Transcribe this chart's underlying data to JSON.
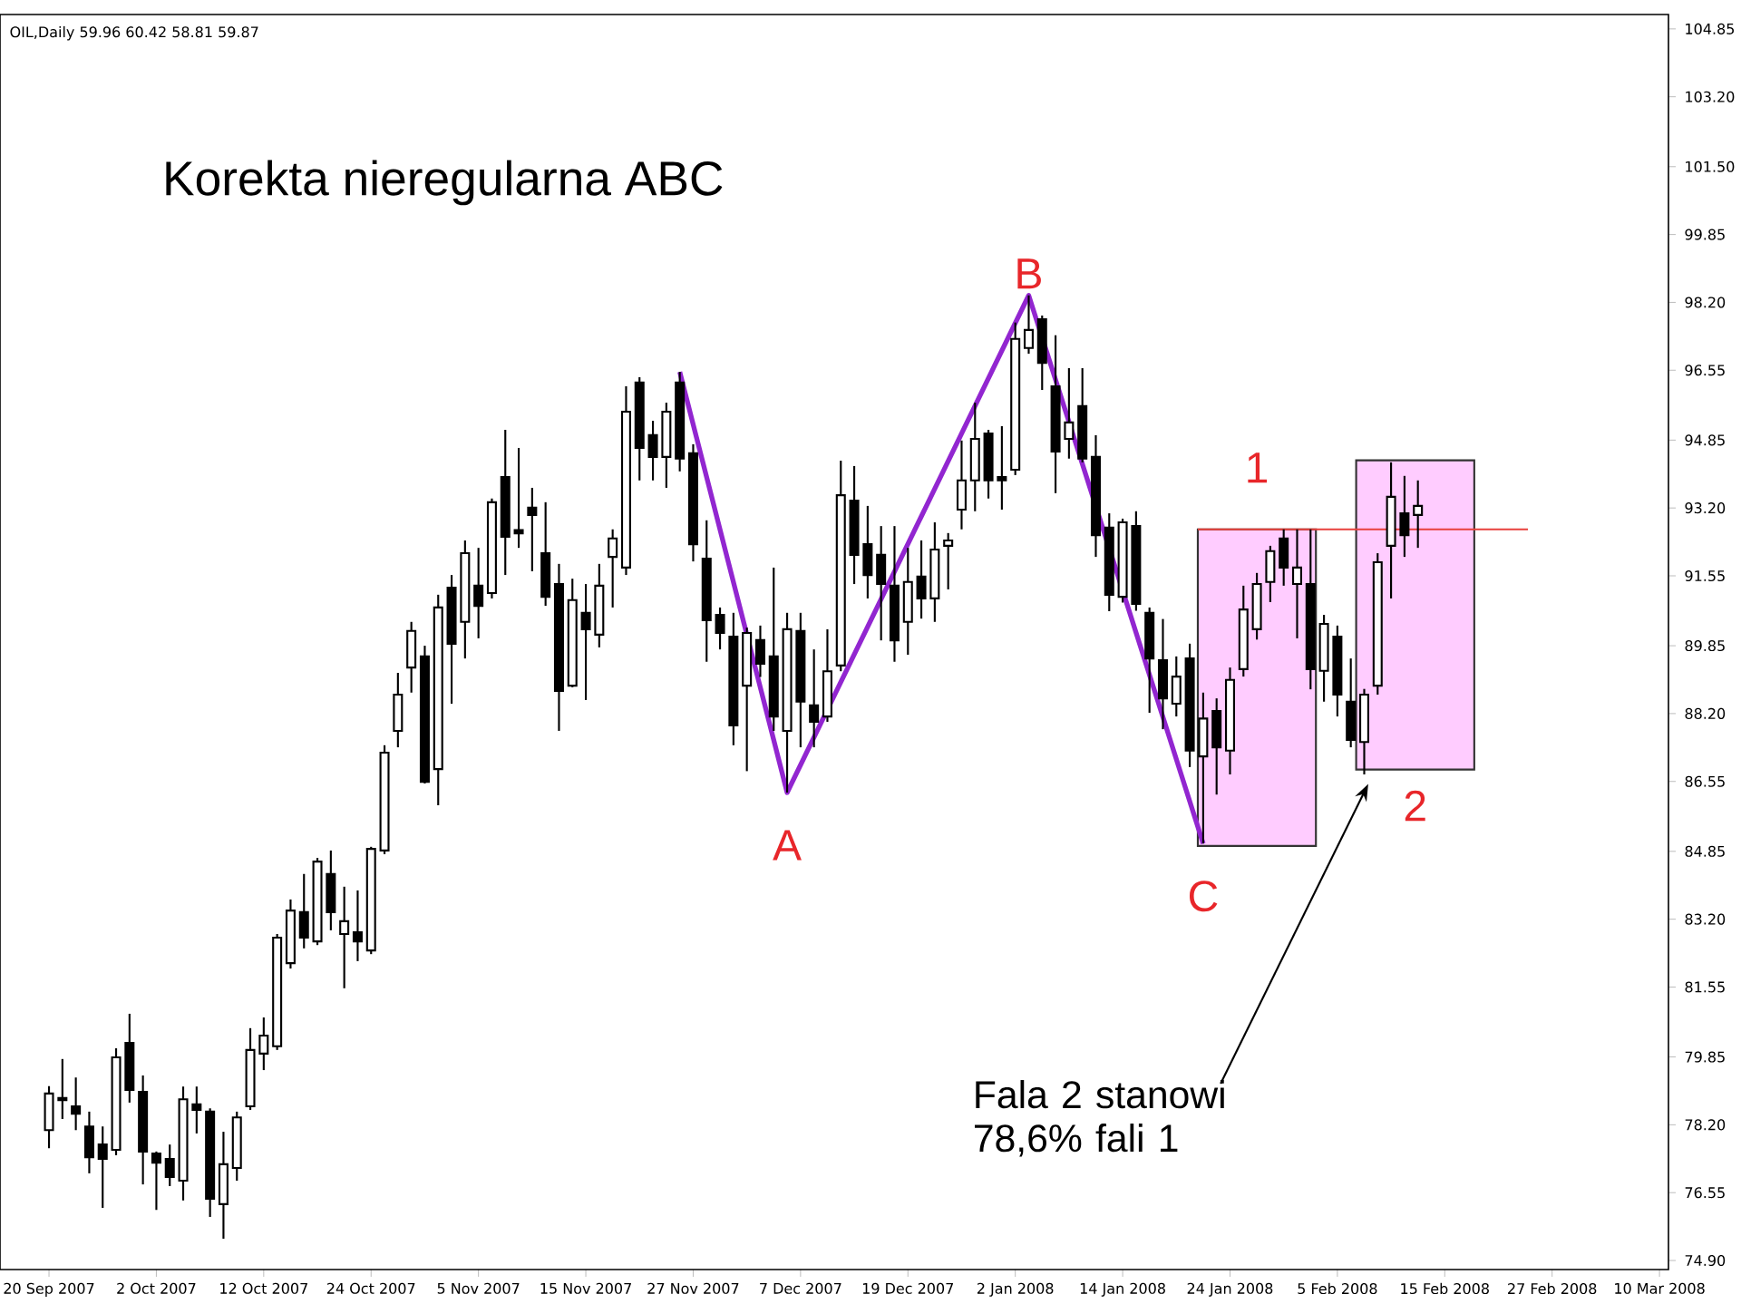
{
  "chart_data": {
    "type": "candlestick",
    "title": "Korekta nieregularna ABC",
    "annotations": [
      "OIL,Daily 59.96 60.42 58.81 59.87",
      {
        "text": "A",
        "y": 86.28
      },
      {
        "text": "B",
        "y": 98.37
      },
      {
        "text": "C",
        "y": 85.04
      },
      {
        "text": "1",
        "y": 92.68
      },
      {
        "text": "2",
        "y": 86.84
      },
      "Fala 2 stanowi 78,6% fali 1"
    ],
    "categories": [
      "20 Sep 2007",
      null,
      null,
      null,
      null,
      null,
      null,
      null,
      "2 Oct 2007",
      null,
      null,
      null,
      null,
      null,
      null,
      null,
      "12 Oct 2007",
      null,
      null,
      null,
      null,
      null,
      null,
      null,
      "24 Oct 2007",
      null,
      null,
      null,
      null,
      null,
      null,
      null,
      "5 Nov 2007",
      null,
      null,
      null,
      null,
      null,
      null,
      null,
      "15 Nov 2007",
      null,
      null,
      null,
      null,
      null,
      null,
      null,
      "27 Nov 2007",
      null,
      null,
      null,
      null,
      null,
      null,
      null,
      "7 Dec 2007",
      null,
      null,
      null,
      null,
      null,
      null,
      null,
      "19 Dec 2007",
      null,
      null,
      null,
      null,
      null,
      null,
      null,
      "2 Jan 2008",
      null,
      null,
      null,
      null,
      null,
      null,
      null,
      "14 Jan 2008",
      null,
      null,
      null,
      null,
      null,
      null,
      null,
      "24 Jan 2008",
      null,
      null,
      null,
      null,
      null,
      null,
      null,
      "5 Feb 2008",
      null,
      null,
      null,
      null,
      null,
      null,
      null,
      "15 Feb 2008",
      null,
      null,
      null,
      null,
      null,
      null,
      null,
      "27 Feb 2008",
      null,
      null,
      null,
      null,
      null,
      null,
      null,
      "10 Mar 2008"
    ],
    "ohlc": [
      [
        78.07,
        79.14,
        77.63,
        78.96
      ],
      [
        78.8,
        79.8,
        78.34,
        78.85
      ],
      [
        78.65,
        79.35,
        78.07,
        78.47
      ],
      [
        78.16,
        78.52,
        77.02,
        77.41
      ],
      [
        77.72,
        78.16,
        76.18,
        77.37
      ],
      [
        77.59,
        80.06,
        77.46,
        79.84
      ],
      [
        80.19,
        80.9,
        78.74,
        79.05
      ],
      [
        79.0,
        79.4,
        76.75,
        77.55
      ],
      [
        77.5,
        77.55,
        76.13,
        77.28
      ],
      [
        77.37,
        77.72,
        76.71,
        76.93
      ],
      [
        76.84,
        79.13,
        76.36,
        78.82
      ],
      [
        78.7,
        79.13,
        77.99,
        78.56
      ],
      [
        78.52,
        78.6,
        75.96,
        76.4
      ],
      [
        76.27,
        78.03,
        75.43,
        77.24
      ],
      [
        77.15,
        78.52,
        76.84,
        78.38
      ],
      [
        78.65,
        80.55,
        78.56,
        80.02
      ],
      [
        79.93,
        80.81,
        79.53,
        80.37
      ],
      [
        80.11,
        82.84,
        80.02,
        82.75
      ],
      [
        82.13,
        83.68,
        82.0,
        83.41
      ],
      [
        83.37,
        84.3,
        82.49,
        82.75
      ],
      [
        82.66,
        84.69,
        82.57,
        84.6
      ],
      [
        84.3,
        84.87,
        82.93,
        83.37
      ],
      [
        82.84,
        83.99,
        81.52,
        83.15
      ],
      [
        82.88,
        83.9,
        82.18,
        82.66
      ],
      [
        82.44,
        84.96,
        82.35,
        84.91
      ],
      [
        84.87,
        87.43,
        84.78,
        87.25
      ],
      [
        87.78,
        89.19,
        87.38,
        88.66
      ],
      [
        89.32,
        90.43,
        88.71,
        90.21
      ],
      [
        89.59,
        89.85,
        86.5,
        86.54
      ],
      [
        86.85,
        91.09,
        85.97,
        90.78
      ],
      [
        91.26,
        91.57,
        88.44,
        89.9
      ],
      [
        90.43,
        92.41,
        89.54,
        92.1
      ],
      [
        91.31,
        92.23,
        90.03,
        90.82
      ],
      [
        91.13,
        93.43,
        91.0,
        93.34
      ],
      [
        93.95,
        95.1,
        91.57,
        92.5
      ],
      [
        92.66,
        94.66,
        92.23,
        92.58
      ],
      [
        93.21,
        93.69,
        91.66,
        93.03
      ],
      [
        92.1,
        93.34,
        90.82,
        91.04
      ],
      [
        91.35,
        91.84,
        87.78,
        88.75
      ],
      [
        88.88,
        91.48,
        88.84,
        90.96
      ],
      [
        90.65,
        91.35,
        88.53,
        90.25
      ],
      [
        90.12,
        91.84,
        89.81,
        91.31
      ],
      [
        92.01,
        92.68,
        90.78,
        92.46
      ],
      [
        91.75,
        96.16,
        91.57,
        95.54
      ],
      [
        96.25,
        96.38,
        93.87,
        94.66
      ],
      [
        94.97,
        95.32,
        93.87,
        94.44
      ],
      [
        94.44,
        95.76,
        93.69,
        95.54
      ],
      [
        96.25,
        96.51,
        94.09,
        94.4
      ],
      [
        94.53,
        94.75,
        91.9,
        92.32
      ],
      [
        91.97,
        92.9,
        89.46,
        90.47
      ],
      [
        90.6,
        90.78,
        89.76,
        90.16
      ],
      [
        90.07,
        90.65,
        87.43,
        87.91
      ],
      [
        88.88,
        90.29,
        86.8,
        90.16
      ],
      [
        89.99,
        90.34,
        89.09,
        89.41
      ],
      [
        89.59,
        91.75,
        87.78,
        88.13
      ],
      [
        87.78,
        90.65,
        86.28,
        90.25
      ],
      [
        90.21,
        90.65,
        87.38,
        88.49
      ],
      [
        88.4,
        89.76,
        87.38,
        88.0
      ],
      [
        88.13,
        90.25,
        88.0,
        89.23
      ],
      [
        89.37,
        94.35,
        89.23,
        93.51
      ],
      [
        93.38,
        94.22,
        91.35,
        92.06
      ],
      [
        92.32,
        93.25,
        91.0,
        91.57
      ],
      [
        92.06,
        92.76,
        89.98,
        91.35
      ],
      [
        91.31,
        92.76,
        89.46,
        89.98
      ],
      [
        90.43,
        92.23,
        89.63,
        91.4
      ],
      [
        91.53,
        92.41,
        90.51,
        91.0
      ],
      [
        91.0,
        92.85,
        90.43,
        92.19
      ],
      [
        92.28,
        92.59,
        91.22,
        92.41
      ],
      [
        93.16,
        94.84,
        92.68,
        93.87
      ],
      [
        93.87,
        95.76,
        93.12,
        94.88
      ],
      [
        95.01,
        95.1,
        93.43,
        93.87
      ],
      [
        93.95,
        95.19,
        93.16,
        93.87
      ],
      [
        94.13,
        97.71,
        94.0,
        97.31
      ],
      [
        97.09,
        98.37,
        96.95,
        97.53
      ],
      [
        97.79,
        97.88,
        96.07,
        96.73
      ],
      [
        96.16,
        97.4,
        93.56,
        94.57
      ],
      [
        94.88,
        96.6,
        94.4,
        95.28
      ],
      [
        95.68,
        96.6,
        94.31,
        94.4
      ],
      [
        94.44,
        94.97,
        92.01,
        92.54
      ],
      [
        92.72,
        93.07,
        90.69,
        91.09
      ],
      [
        91.04,
        92.94,
        90.9,
        92.85
      ],
      [
        92.76,
        93.12,
        90.7,
        90.87
      ],
      [
        90.65,
        90.78,
        88.22,
        89.54
      ],
      [
        89.5,
        90.5,
        87.82,
        88.57
      ],
      [
        88.44,
        89.59,
        88.13,
        89.1
      ],
      [
        89.54,
        89.9,
        86.9,
        87.3
      ],
      [
        87.16,
        88.71,
        85.04,
        88.08
      ],
      [
        88.26,
        88.57,
        86.23,
        87.38
      ],
      [
        87.3,
        89.32,
        86.72,
        89.02
      ],
      [
        89.28,
        91.31,
        89.1,
        90.73
      ],
      [
        90.25,
        91.62,
        90.0,
        91.35
      ],
      [
        91.4,
        92.28,
        90.91,
        92.15
      ],
      [
        92.46,
        92.68,
        91.31,
        91.75
      ],
      [
        91.35,
        92.68,
        90.03,
        91.75
      ],
      [
        91.35,
        92.68,
        88.79,
        89.28
      ],
      [
        89.24,
        90.6,
        88.49,
        90.38
      ],
      [
        90.07,
        90.34,
        88.13,
        88.66
      ],
      [
        88.49,
        89.54,
        87.38,
        87.56
      ],
      [
        87.51,
        88.8,
        86.72,
        88.66
      ],
      [
        88.88,
        92.1,
        88.66,
        91.88
      ],
      [
        92.28,
        94.31,
        91.0,
        93.47
      ],
      [
        93.07,
        93.98,
        92.01,
        92.54
      ],
      [
        93.03,
        93.87,
        92.23,
        93.25
      ],
      null,
      null,
      null,
      null,
      null,
      null,
      null,
      null,
      null,
      null,
      null,
      null,
      null,
      null,
      null,
      null,
      null,
      null
    ],
    "series": [
      {
        "type": "line",
        "color": "#9226d0",
        "values": [
          null,
          null,
          null,
          null,
          null,
          null,
          null,
          null,
          null,
          null,
          null,
          null,
          null,
          null,
          null,
          null,
          null,
          null,
          null,
          null,
          null,
          null,
          null,
          null,
          null,
          null,
          null,
          null,
          null,
          null,
          null,
          null,
          null,
          null,
          null,
          null,
          null,
          null,
          null,
          null,
          null,
          null,
          null,
          null,
          null,
          null,
          null,
          96.51,
          null,
          null,
          null,
          null,
          null,
          null,
          null,
          86.28,
          null,
          null,
          null,
          null,
          null,
          null,
          null,
          null,
          null,
          null,
          null,
          null,
          null,
          null,
          null,
          null,
          null,
          98.37,
          null,
          null,
          null,
          null,
          null,
          null,
          null,
          null,
          null,
          null,
          null,
          null,
          85.04,
          null,
          null,
          null,
          null,
          null,
          null,
          null,
          null,
          null,
          null,
          null,
          null,
          null,
          null,
          null,
          null,
          null,
          null,
          null,
          null,
          null,
          null,
          null,
          null,
          null,
          null,
          null,
          null,
          null,
          null,
          null,
          null,
          null,
          null
        ]
      }
    ],
    "bands": [
      {
        "axis": "y",
        "from": 84.98,
        "to": 92.68,
        "color": "#ffccff"
      },
      {
        "axis": "y",
        "from": 86.84,
        "to": 94.36,
        "color": "#ffccff"
      }
    ],
    "ref_lines": [
      {
        "axis": "y",
        "value": 92.68,
        "color": "#e8403c"
      }
    ],
    "ylim": [
      74.68,
      105.2
    ],
    "yticks": [
      {
        "value": 74.9,
        "label": "74.90"
      },
      76.55,
      {
        "value": 78.2,
        "label": "78.20"
      },
      79.85,
      81.55,
      {
        "value": 83.2,
        "label": "83.20"
      },
      84.85,
      86.55,
      {
        "value": 88.2,
        "label": "88.20"
      },
      89.85,
      91.55,
      {
        "value": 93.2,
        "label": "93.20"
      },
      94.85,
      96.55,
      {
        "value": 98.2,
        "label": "98.20"
      },
      99.85,
      {
        "value": 101.5,
        "label": "101.50"
      },
      {
        "value": 103.2,
        "label": "103.20"
      },
      104.85
    ]
  }
}
